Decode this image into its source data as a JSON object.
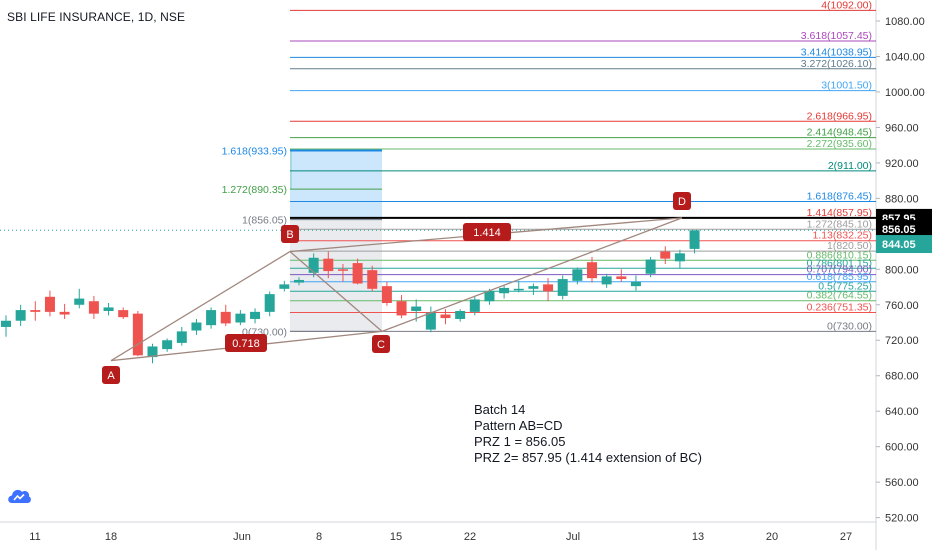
{
  "chart_data": {
    "type": "candlestick",
    "title": "SBI LIFE INSURANCE, 1D, NSE",
    "y_axis": {
      "ticks": [
        520,
        560,
        600,
        640,
        680,
        720,
        760,
        800,
        840,
        880,
        920,
        960,
        1000,
        1040,
        1080
      ],
      "ylim": [
        505,
        1100
      ]
    },
    "x_axis": {
      "labels": [
        "11",
        "18",
        "Jun",
        "8",
        "15",
        "22",
        "Jul",
        "13",
        "20",
        "27"
      ]
    },
    "candles": [
      {
        "o": 735,
        "h": 748,
        "l": 724,
        "c": 742
      },
      {
        "o": 742,
        "h": 760,
        "l": 736,
        "c": 754
      },
      {
        "o": 754,
        "h": 764,
        "l": 742,
        "c": 752
      },
      {
        "o": 769,
        "h": 776,
        "l": 747,
        "c": 752
      },
      {
        "o": 752,
        "h": 761,
        "l": 744,
        "c": 749
      },
      {
        "o": 760,
        "h": 778,
        "l": 756,
        "c": 767
      },
      {
        "o": 764,
        "h": 770,
        "l": 744,
        "c": 750
      },
      {
        "o": 753,
        "h": 762,
        "l": 748,
        "c": 757
      },
      {
        "o": 754,
        "h": 757,
        "l": 744,
        "c": 746
      },
      {
        "o": 750,
        "h": 753,
        "l": 702,
        "c": 703
      },
      {
        "o": 701,
        "h": 716,
        "l": 694,
        "c": 713
      },
      {
        "o": 710,
        "h": 722,
        "l": 707,
        "c": 720
      },
      {
        "o": 717,
        "h": 735,
        "l": 714,
        "c": 730
      },
      {
        "o": 731,
        "h": 744,
        "l": 726,
        "c": 740
      },
      {
        "o": 737,
        "h": 757,
        "l": 733,
        "c": 754
      },
      {
        "o": 752,
        "h": 760,
        "l": 736,
        "c": 739
      },
      {
        "o": 740,
        "h": 754,
        "l": 737,
        "c": 750
      },
      {
        "o": 744,
        "h": 756,
        "l": 739,
        "c": 752
      },
      {
        "o": 752,
        "h": 775,
        "l": 747,
        "c": 772
      },
      {
        "o": 778,
        "h": 787,
        "l": 775,
        "c": 783
      },
      {
        "o": 785,
        "h": 791,
        "l": 782,
        "c": 788
      },
      {
        "o": 796,
        "h": 818,
        "l": 791,
        "c": 813
      },
      {
        "o": 812,
        "h": 820,
        "l": 790,
        "c": 798
      },
      {
        "o": 800,
        "h": 806,
        "l": 786,
        "c": 799
      },
      {
        "o": 807,
        "h": 812,
        "l": 783,
        "c": 784
      },
      {
        "o": 799,
        "h": 804,
        "l": 775,
        "c": 778
      },
      {
        "o": 781,
        "h": 786,
        "l": 759,
        "c": 762
      },
      {
        "o": 764,
        "h": 771,
        "l": 745,
        "c": 748
      },
      {
        "o": 753,
        "h": 766,
        "l": 741,
        "c": 758
      },
      {
        "o": 732,
        "h": 758,
        "l": 729,
        "c": 751
      },
      {
        "o": 749,
        "h": 755,
        "l": 738,
        "c": 745
      },
      {
        "o": 744,
        "h": 755,
        "l": 741,
        "c": 753
      },
      {
        "o": 752,
        "h": 769,
        "l": 748,
        "c": 766
      },
      {
        "o": 764,
        "h": 778,
        "l": 760,
        "c": 775
      },
      {
        "o": 773,
        "h": 782,
        "l": 767,
        "c": 779
      },
      {
        "o": 777,
        "h": 787,
        "l": 774,
        "c": 778
      },
      {
        "o": 778,
        "h": 784,
        "l": 771,
        "c": 781
      },
      {
        "o": 783,
        "h": 790,
        "l": 764,
        "c": 775
      },
      {
        "o": 770,
        "h": 793,
        "l": 766,
        "c": 789
      },
      {
        "o": 787,
        "h": 802,
        "l": 783,
        "c": 800
      },
      {
        "o": 808,
        "h": 814,
        "l": 785,
        "c": 790
      },
      {
        "o": 783,
        "h": 795,
        "l": 779,
        "c": 792
      },
      {
        "o": 792,
        "h": 800,
        "l": 786,
        "c": 789
      },
      {
        "o": 781,
        "h": 793,
        "l": 776,
        "c": 786
      },
      {
        "o": 795,
        "h": 814,
        "l": 791,
        "c": 811
      },
      {
        "o": 820,
        "h": 826,
        "l": 806,
        "c": 812
      },
      {
        "o": 809,
        "h": 822,
        "l": 801,
        "c": 818
      },
      {
        "o": 823,
        "h": 844,
        "l": 818,
        "c": 844
      }
    ],
    "fib_levels": [
      {
        "label": "4(1092.00)",
        "price": 1092.0,
        "color": "#e53935"
      },
      {
        "label": "3.618(1057.45)",
        "price": 1057.45,
        "color": "#ab47bc"
      },
      {
        "label": "3.414(1038.95)",
        "price": 1038.95,
        "color": "#1e88e5"
      },
      {
        "label": "3.272(1026.10)",
        "price": 1026.1,
        "color": "#607d8b"
      },
      {
        "label": "3(1001.50)",
        "price": 1001.5,
        "color": "#42a5f5"
      },
      {
        "label": "2.618(966.95)",
        "price": 966.95,
        "color": "#e53935"
      },
      {
        "label": "2.414(948.45)",
        "price": 948.45,
        "color": "#43a047"
      },
      {
        "label": "2.272(935.60)",
        "price": 935.6,
        "color": "#66bb6a"
      },
      {
        "label": "2(911.00)",
        "price": 911.0,
        "color": "#00897b"
      },
      {
        "label": "1.618(876.45)",
        "price": 876.45,
        "color": "#1e88e5"
      },
      {
        "label": "1.414(857.95)",
        "price": 857.95,
        "color": "#e53935"
      },
      {
        "label": "1.272(845.10)",
        "price": 845.1,
        "color": "#9e9e9e"
      },
      {
        "label": "1.13(832.25)",
        "price": 832.25,
        "color": "#ef5350"
      },
      {
        "label": "1(820.50)",
        "price": 820.5,
        "color": "#9e9e9e"
      },
      {
        "label": "0.886(810.15)",
        "price": 810.15,
        "color": "#66bb6a"
      },
      {
        "label": "0.786(801.15)",
        "price": 801.15,
        "color": "#26a69a"
      },
      {
        "label": "0.707(794.00)",
        "price": 794.0,
        "color": "#7e57c2"
      },
      {
        "label": "0.618(785.95)",
        "price": 785.95,
        "color": "#42a5f5"
      },
      {
        "label": "0.5(775.25)",
        "price": 775.25,
        "color": "#26a69a"
      },
      {
        "label": "0.382(764.55)",
        "price": 764.55,
        "color": "#66bb6a"
      },
      {
        "label": "0.236(751.35)",
        "price": 751.35,
        "color": "#ef5350"
      },
      {
        "label": "0(730.00)",
        "price": 730.0,
        "color": "#787b86"
      }
    ],
    "box_levels": [
      {
        "label": "1.618(933.95)",
        "price": 933.95,
        "color": "#1e88e5"
      },
      {
        "label": "1.272(890.35)",
        "price": 890.35,
        "color": "#43a047"
      },
      {
        "label": "1(856.05)",
        "price": 856.05,
        "color": "#787b86"
      },
      {
        "label": "0(730.00)",
        "price": 730.0,
        "color": "#787b86"
      }
    ],
    "pattern_points": [
      {
        "label": "A",
        "price": 697
      },
      {
        "label": "B",
        "price": 820
      },
      {
        "label": "C",
        "price": 730
      },
      {
        "label": "D",
        "price": 858
      }
    ],
    "pattern_ratios": [
      "0.718",
      "1.414"
    ],
    "price_tags": [
      {
        "value": "857.95",
        "price": 857.95,
        "color": "#000000"
      },
      {
        "value": "856.05",
        "price": 845.4,
        "color": "#000000"
      },
      {
        "value": "844.05",
        "price": 828.5,
        "color": "#26a69a"
      }
    ],
    "current_price": 844.05,
    "colors": {
      "up": "#26a69a",
      "down": "#ef5350",
      "badge": "#b71c1c",
      "line": "#a1887f",
      "axis_text": "#333333"
    }
  },
  "note_lines": [
    "Batch 14",
    "Pattern AB=CD",
    "PRZ 1 = 856.05",
    "PRZ 2= 857.95 (1.414 extension of BC)"
  ],
  "logo_icon": "tradingview-cloud-icon"
}
